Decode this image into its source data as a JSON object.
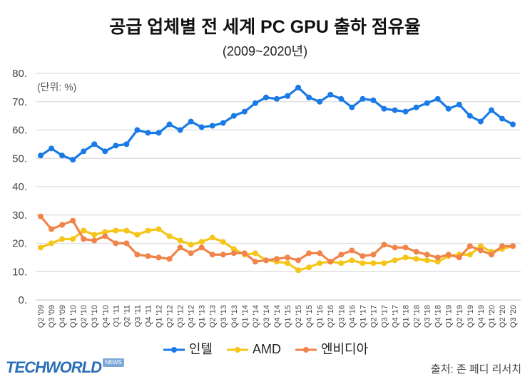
{
  "chart_data": {
    "type": "line",
    "title": "공급 업체별 전 세계 PC GPU 출하 점유율",
    "subtitle": "(2009~2020년)",
    "unit_label": "(단위: %)",
    "ylim": [
      0,
      80
    ],
    "yticks": [
      "0.",
      "10.",
      "20.",
      "30.",
      "40.",
      "50.",
      "60.",
      "70.",
      "80."
    ],
    "grid": true,
    "legend_position": "bottom",
    "x": [
      "Q2 '09",
      "Q3 '09",
      "Q4 '09",
      "Q1 '10",
      "Q2 '10",
      "Q3 '10",
      "Q4 '10",
      "Q1 '11",
      "Q2 '11",
      "Q3 '11",
      "Q4 '11",
      "Q1 '12",
      "Q2 '12",
      "Q3 '12",
      "Q4 '12",
      "Q1 '13",
      "Q2 '13",
      "Q3 '13",
      "Q4 '13",
      "Q1 '14",
      "Q2 '14",
      "Q3 '14",
      "Q4 '14",
      "Q1 '15",
      "Q2 '15",
      "Q4 '15",
      "Q1 '16",
      "Q2 '16",
      "Q3 '16",
      "Q4 '16",
      "Q1 '17",
      "Q2 '17",
      "Q3 '17",
      "Q4 '17",
      "Q1 '18",
      "Q2 '18",
      "Q3 '18",
      "Q4 '18",
      "Q1 '19",
      "Q2 '19",
      "Q3 '19",
      "Q4 '19",
      "Q1 '20",
      "Q2 '20",
      "Q3 '20"
    ],
    "series": [
      {
        "name": "인텔",
        "color": "#1a7ae6",
        "values": [
          51,
          53.5,
          51,
          49.5,
          52.5,
          55,
          52.5,
          54.5,
          55,
          60,
          59,
          59,
          62,
          60,
          63,
          61,
          61.5,
          62.5,
          65,
          66.5,
          69.5,
          71.5,
          71,
          72,
          75,
          71.5,
          70,
          72.5,
          71,
          68,
          71,
          70.5,
          67.5,
          67,
          66.5,
          68,
          69.5,
          71,
          67.5,
          69,
          65,
          63,
          67,
          64,
          62
        ]
      },
      {
        "name": "AMD",
        "color": "#f5c518",
        "values": [
          18.5,
          20,
          21.5,
          21.5,
          24.5,
          23,
          24,
          24.5,
          24.5,
          23,
          24.5,
          25,
          22.5,
          21,
          19.5,
          20.5,
          22,
          20.5,
          18,
          16,
          16.5,
          14,
          13.5,
          13,
          10.5,
          11.5,
          13,
          13.5,
          13,
          14,
          13,
          13,
          13,
          14,
          15,
          14.5,
          14,
          13.5,
          15.5,
          16,
          16,
          19,
          17,
          18,
          19
        ]
      },
      {
        "name": "엔비디아",
        "color": "#f0844a",
        "values": [
          29.5,
          25,
          26.5,
          28,
          21.5,
          21,
          22.5,
          20,
          20,
          16,
          15.5,
          15,
          14.5,
          18.5,
          16.5,
          18.5,
          16,
          16,
          16.5,
          16.5,
          13.5,
          14,
          14.5,
          15,
          14,
          16.5,
          16.5,
          13.5,
          16,
          17.5,
          15.5,
          16,
          19.5,
          18.5,
          18.5,
          17,
          16,
          15,
          16,
          15,
          19,
          17.5,
          16,
          19,
          19
        ]
      }
    ]
  },
  "footer": {
    "source": "출처: 존 페디 리서치",
    "logo": "TECHWORLD",
    "logo_badge": "NEWS"
  }
}
